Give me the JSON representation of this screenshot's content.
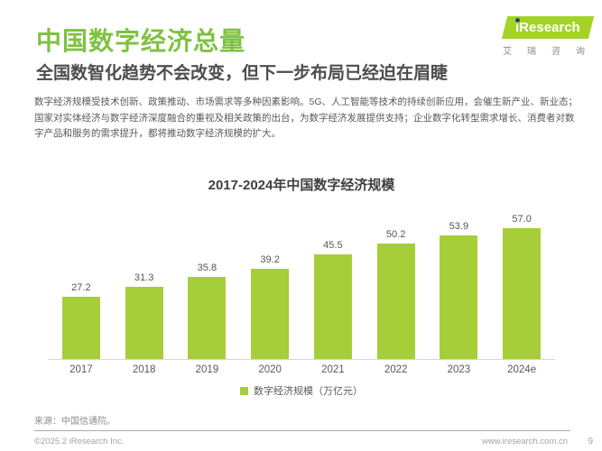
{
  "header": {
    "logo": {
      "brand_i": "i",
      "brand_rest": "Research",
      "brand_cn": "艾瑞咨询"
    }
  },
  "page": {
    "title": "中国数字经济总量",
    "subtitle": "全国数智化趋势不会改变，但下一步布局已经迫在眉睫",
    "body": "数字经济规模受技术创新、政策推动、市场需求等多种因素影响。5G、人工智能等技术的持续创新应用，会催生新产业、新业态；\n国家对实体经济与数字经济深度融合的重视及相关政策的出台，为数字经济发展提供支持；企业数字化转型需求增长、消费者对数\n字产品和服务的需求提升，都将推动数字经济规模的扩大。"
  },
  "chart_data": {
    "type": "bar",
    "title": "2017-2024年中国数字经济规模",
    "categories": [
      "2017",
      "2018",
      "2019",
      "2020",
      "2021",
      "2022",
      "2023",
      "2024e"
    ],
    "values": [
      27.2,
      31.3,
      35.8,
      39.2,
      45.5,
      50.2,
      53.9,
      57.0
    ],
    "series_name": "数字经济规模",
    "unit": "万亿元",
    "legend_label": "数字经济规模（万亿元）",
    "ylim": [
      0,
      60
    ],
    "grid": false,
    "legend_position": "bottom",
    "bar_color": "#a6ce39"
  },
  "footer": {
    "source": "来源：中国信通院。",
    "copyright": "©2025.2 iResearch Inc.",
    "website": "www.iresearch.com.cn",
    "page_number": "9"
  },
  "colors": {
    "accent_green": "#7fc241",
    "bar_green": "#a6ce39",
    "logo_green": "#a3d327",
    "logo_navy": "#24407c"
  }
}
